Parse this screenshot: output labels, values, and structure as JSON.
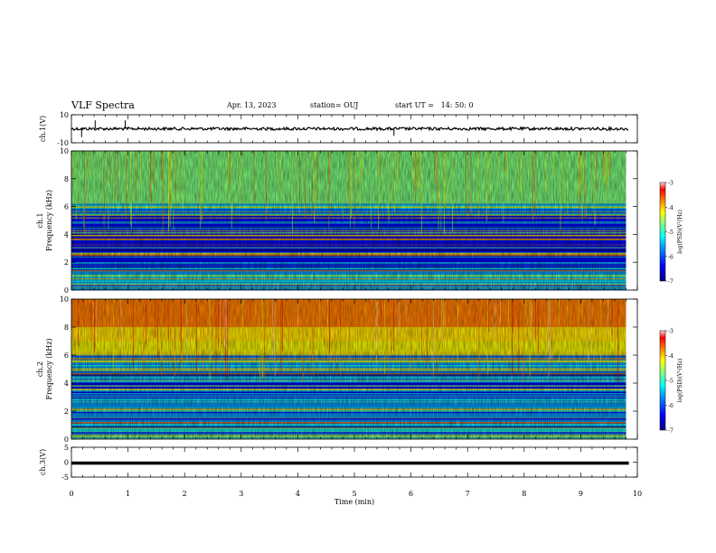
{
  "header": {
    "title": "VLF Spectra",
    "date": "Apr. 13, 2023",
    "station": "station= OUJ",
    "start": "start UT =   14: 50: 0"
  },
  "colors": {
    "colormap": [
      "#00007f",
      "#0000ff",
      "#00a0ff",
      "#00ffff",
      "#7fff7f",
      "#ffff00",
      "#ff7f00",
      "#ff0000",
      "#ffd6d6"
    ],
    "trace": "#000000"
  },
  "chart_data": [
    {
      "type": "line",
      "name": "ch1-waveform",
      "ylabel": "ch.1(V)",
      "ylim": [
        -10,
        10
      ],
      "yticks": [
        "10",
        "-10"
      ],
      "xlim": [
        0,
        10
      ],
      "level": 0,
      "spikes": [
        {
          "x": 0.18,
          "y": -6
        },
        {
          "x": 0.42,
          "y": 6
        },
        {
          "x": 0.95,
          "y": 6
        },
        {
          "x": 5.7,
          "y": -5
        }
      ]
    },
    {
      "type": "heatmap",
      "name": "ch1-spectrogram",
      "ylabel": "ch.1\nFrequency (kHz)",
      "ylim": [
        0,
        10
      ],
      "yticks": [
        "0",
        "2",
        "4",
        "6",
        "8",
        "10"
      ],
      "xlim": [
        0,
        10
      ],
      "data_end_min": 9.8,
      "colorbar": {
        "label": "log(PSD)(V²/Hz)",
        "ticks": [
          "-3",
          "-4",
          "-5",
          "-6",
          "-7"
        ],
        "range": [
          -7,
          -3
        ]
      },
      "bands": [
        {
          "f": [
            6.2,
            10.0
          ],
          "level": -5.2
        },
        {
          "f": [
            5.6,
            6.2
          ],
          "level": -5.8
        },
        {
          "f": [
            3.5,
            5.6
          ],
          "level": -6.6
        },
        {
          "f": [
            2.0,
            3.5
          ],
          "level": -6.3
        },
        {
          "f": [
            0.5,
            2.0
          ],
          "level": -6.0
        },
        {
          "f": [
            0.0,
            0.5
          ],
          "level": -5.5
        }
      ]
    },
    {
      "type": "heatmap",
      "name": "ch2-spectrogram",
      "ylabel": "ch.2\nFrequency (kHz)",
      "ylim": [
        0,
        10
      ],
      "yticks": [
        "0",
        "2",
        "4",
        "6",
        "8",
        "10"
      ],
      "xlim": [
        0,
        10
      ],
      "data_end_min": 9.8,
      "colorbar": {
        "label": "log(PSD)(V²/Hz)",
        "ticks": [
          "-3",
          "-4",
          "-5",
          "-6",
          "-7"
        ],
        "range": [
          -7,
          -3
        ]
      },
      "bands": [
        {
          "f": [
            8.0,
            10.0
          ],
          "level": -3.8
        },
        {
          "f": [
            6.0,
            8.0
          ],
          "level": -4.6
        },
        {
          "f": [
            5.0,
            6.0
          ],
          "level": -5.8
        },
        {
          "f": [
            3.0,
            5.0
          ],
          "level": -6.5
        },
        {
          "f": [
            1.5,
            3.0
          ],
          "level": -6.2
        },
        {
          "f": [
            0.0,
            1.5
          ],
          "level": -6.0
        }
      ]
    },
    {
      "type": "line",
      "name": "ch3-waveform",
      "ylabel": "ch.3(V)",
      "ylim": [
        -5,
        5
      ],
      "yticks": [
        "5",
        "0",
        "-5"
      ],
      "xlim": [
        0,
        10
      ],
      "level": -0.3
    }
  ],
  "xaxis": {
    "label": "Time (min)",
    "ticks": [
      "0",
      "1",
      "2",
      "3",
      "4",
      "5",
      "6",
      "7",
      "8",
      "9",
      "10"
    ]
  }
}
